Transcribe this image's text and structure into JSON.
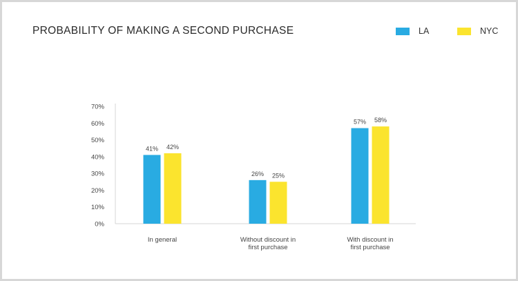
{
  "chart_data": {
    "type": "bar",
    "title": "PROBABILITY OF MAKING A SECOND PURCHASE",
    "xlabel": "",
    "ylabel": "",
    "categories": [
      [
        "In general"
      ],
      [
        "Without discount in",
        "first purchase"
      ],
      [
        "With discount in",
        "first purchase"
      ]
    ],
    "series": [
      {
        "name": "LA",
        "values": [
          41,
          26,
          57
        ],
        "labels": [
          "41%",
          "26%",
          "57%"
        ],
        "color": "#29abe2"
      },
      {
        "name": "NYC",
        "values": [
          42,
          25,
          58
        ],
        "labels": [
          "42%",
          "25%",
          "58%"
        ],
        "color": "#fbe42e"
      }
    ],
    "ylim": [
      0,
      70
    ],
    "yticks": [
      {
        "value": 0,
        "label": "0%"
      },
      {
        "value": 10,
        "label": "10%"
      },
      {
        "value": 20,
        "label": "20%"
      },
      {
        "value": 30,
        "label": "30%"
      },
      {
        "value": 40,
        "label": "40%"
      },
      {
        "value": 50,
        "label": "50%"
      },
      {
        "value": 60,
        "label": "60%"
      },
      {
        "value": 70,
        "label": "70%"
      }
    ],
    "grid": false,
    "legend": "top-right"
  }
}
